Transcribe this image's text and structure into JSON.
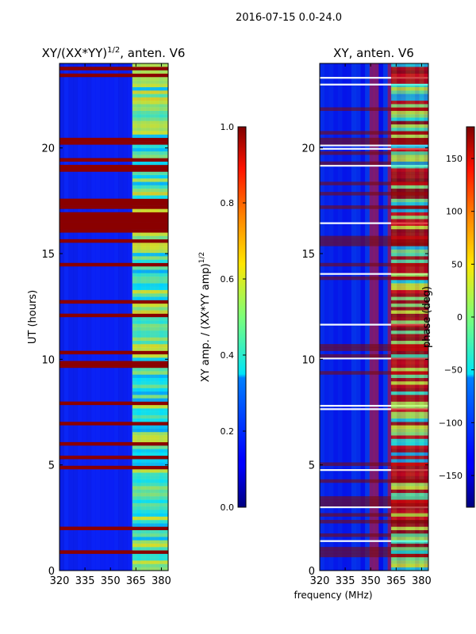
{
  "suptitle": "2016-07-15 0.0-24.0",
  "xlabel": "frequency (MHz)",
  "chart_data": [
    {
      "type": "heatmap",
      "title": "XY/(XX*YY)",
      "title_sup": "1/2",
      "title_suffix": ", anten. V6",
      "ylabel": "UT (hours)",
      "xlim": [
        320,
        384
      ],
      "ylim": [
        0,
        24
      ],
      "xticks": [
        320,
        335,
        350,
        365,
        380
      ],
      "yticks": [
        0,
        5,
        10,
        15,
        20
      ],
      "colorbar": {
        "label": "XY amp. / (XX*YY amp)",
        "label_sup": "1/2",
        "range": [
          0.0,
          1.0
        ],
        "ticks": [
          "0.0",
          "0.2",
          "0.4",
          "0.6",
          "0.8",
          "1.0"
        ]
      }
    },
    {
      "type": "heatmap",
      "title": "XY, anten. V6",
      "xlim": [
        320,
        384
      ],
      "ylim": [
        0,
        24
      ],
      "xticks": [
        320,
        335,
        350,
        365,
        380
      ],
      "yticks": [
        0,
        5,
        10,
        15,
        20
      ],
      "colorbar": {
        "label": "phase (deg)",
        "range": [
          -180,
          180
        ],
        "ticks": [
          "−150",
          "−100",
          "−50",
          "0",
          "50",
          "100",
          "150"
        ]
      }
    }
  ]
}
